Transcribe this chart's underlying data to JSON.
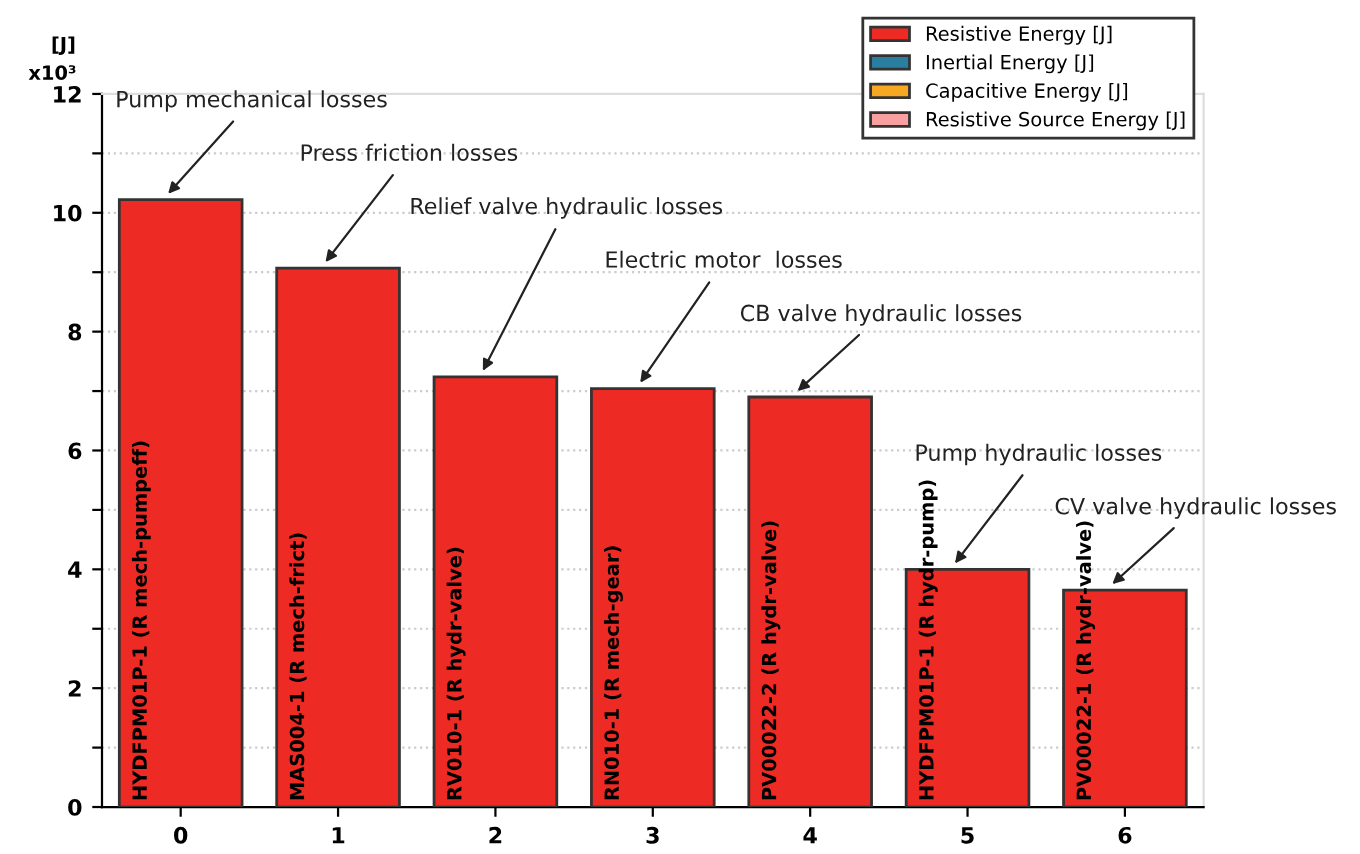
{
  "chart_data": {
    "type": "bar",
    "ylabel": "[J]",
    "categories": [
      "0",
      "1",
      "2",
      "3",
      "4",
      "5",
      "6"
    ],
    "series": [
      {
        "name": "Resistive Energy [J]",
        "color": "#ee2a24",
        "values": [
          10.22,
          9.07,
          7.24,
          7.04,
          6.9,
          4.0,
          3.65
        ]
      },
      {
        "name": "Inertial Energy [J]",
        "color": "#2a7fa0",
        "values": [
          null,
          null,
          null,
          null,
          null,
          null,
          null
        ]
      },
      {
        "name": "Capacitive Energy [J]",
        "color": "#f7a823",
        "values": [
          null,
          null,
          null,
          null,
          null,
          null,
          null
        ]
      },
      {
        "name": "Resistive Source Energy [J]",
        "color": "#f8a0a0",
        "values": [
          null,
          null,
          null,
          null,
          null,
          null,
          null
        ]
      }
    ],
    "ylim": [
      0,
      12
    ],
    "yticks": [
      0,
      {
        "value": 1,
        "label": null
      },
      2,
      {
        "value": 3,
        "label": null
      },
      4,
      {
        "value": 5,
        "label": null
      },
      6,
      {
        "value": 7,
        "label": null
      },
      8,
      {
        "value": 9,
        "label": null
      },
      10,
      {
        "value": 11,
        "label": null
      },
      12
    ],
    "grid": "y",
    "legend": "top right",
    "annotations": [
      "x10³",
      {
        "text": "Pump mechanical losses",
        "x": "0",
        "y": 10.22
      },
      {
        "text": "Press friction losses",
        "x": "1",
        "y": 9.07
      },
      {
        "text": "Relief valve hydraulic losses",
        "x": "2",
        "y": 7.24
      },
      {
        "text": "Electric motor  losses",
        "x": "3",
        "y": 7.04
      },
      {
        "text": "CB valve hydraulic losses",
        "x": "4",
        "y": 6.9
      },
      {
        "text": "Pump hydraulic losses",
        "x": "5",
        "y": 4.0
      },
      {
        "text": "CV valve hydraulic losses",
        "x": "6",
        "y": 3.65
      },
      {
        "text": "HYDFPM01P-1 (R mech-pumpeff)",
        "x": "0",
        "y": 0
      },
      {
        "text": "MAS004-1 (R mech-frict)",
        "x": "1",
        "y": 0
      },
      {
        "text": "RV010-1 (R hydr-valve)",
        "x": "2",
        "y": 0
      },
      {
        "text": "RN010-1 (R mech-gear)",
        "x": "3",
        "y": 0
      },
      {
        "text": "PV00022-2 (R hydr-valve)",
        "x": "4",
        "y": 0
      },
      {
        "text": "HYDFPM01P-1 (R hydr-pump)",
        "x": "5",
        "y": 0
      },
      {
        "text": "PV00022-1 (R hydr-valve)",
        "x": "6",
        "y": 0
      }
    ]
  }
}
